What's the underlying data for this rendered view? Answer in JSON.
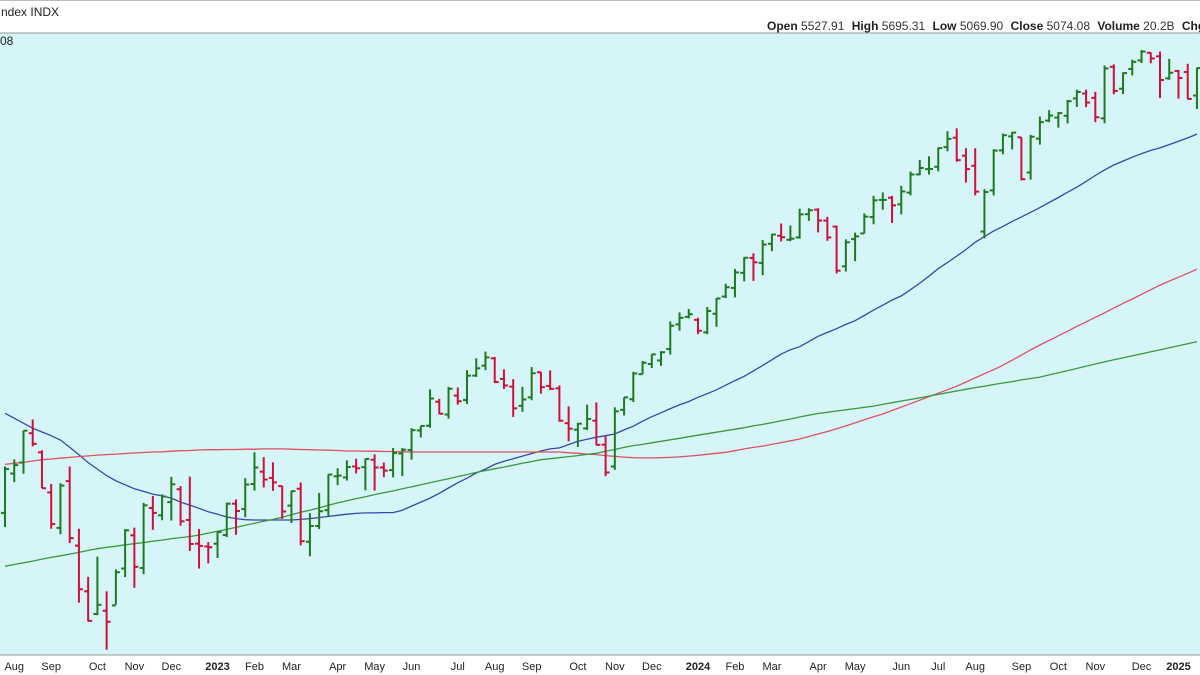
{
  "header": {
    "title": "ndex INDX",
    "price_label": "08",
    "stats": [
      {
        "label": "Open",
        "value": "5527.91"
      },
      {
        "label": "High",
        "value": "5695.31"
      },
      {
        "label": "Low",
        "value": "5069.90"
      },
      {
        "label": "Close",
        "value": "5074.08"
      },
      {
        "label": "Volume",
        "value": "20.2B"
      },
      {
        "label": "Chg"
      }
    ]
  },
  "chart_data": {
    "type": "ohlc",
    "log_scale": true,
    "ylim": [
      3474,
      6196
    ],
    "up_color": "#1f7a1f",
    "down_color": "#d0103a",
    "background": "#d6f5f8",
    "categories": [
      null,
      "Aug",
      null,
      null,
      null,
      "Sep",
      null,
      null,
      null,
      null,
      "Oct",
      null,
      null,
      null,
      "Nov",
      null,
      null,
      null,
      "Dec",
      null,
      null,
      null,
      null,
      "2023",
      null,
      null,
      null,
      "Feb",
      null,
      null,
      null,
      "Mar",
      null,
      null,
      null,
      null,
      "Apr",
      null,
      null,
      null,
      "May",
      null,
      null,
      null,
      "Jun",
      null,
      null,
      null,
      null,
      "Jul",
      null,
      null,
      null,
      "Aug",
      null,
      null,
      null,
      "Sep",
      null,
      null,
      null,
      null,
      "Oct",
      null,
      null,
      null,
      "Nov",
      null,
      null,
      null,
      "Dec",
      null,
      null,
      null,
      null,
      "2024",
      null,
      null,
      null,
      "Feb",
      null,
      null,
      null,
      "Mar",
      null,
      null,
      null,
      null,
      "Apr",
      null,
      null,
      null,
      "May",
      null,
      null,
      null,
      null,
      "Jun",
      null,
      null,
      null,
      "Jul",
      null,
      null,
      null,
      "Aug",
      null,
      null,
      null,
      null,
      "Sep",
      null,
      null,
      null,
      "Oct",
      null,
      null,
      null,
      "Nov",
      null,
      null,
      null,
      null,
      "Dec",
      null,
      null,
      null,
      "2025",
      null,
      null
    ],
    "open": [
      3965,
      4113,
      4155,
      4270,
      4195,
      4041,
      3910,
      4084,
      3846,
      3686,
      3609,
      3620,
      3638,
      3765,
      3883,
      3767,
      3983,
      3956,
      4005,
      4053,
      3939,
      3853,
      3843,
      3853,
      3884,
      3999,
      3979,
      4073,
      4120,
      4096,
      4065,
      3992,
      4055,
      3860,
      3917,
      3975,
      4102,
      4098,
      4140,
      4137,
      4166,
      4136,
      4126,
      4190,
      4204,
      4281,
      4300,
      4397,
      4345,
      4422,
      4404,
      4505,
      4547,
      4578,
      4491,
      4459,
      4380,
      4415,
      4519,
      4462,
      4452,
      4310,
      4284,
      4289,
      4320,
      4225,
      4140,
      4364,
      4407,
      4511,
      4554,
      4569,
      4618,
      4725,
      4758,
      4745,
      4690,
      4772,
      4849,
      4888,
      4957,
      5026,
      5003,
      5093,
      5131,
      5112,
      5123,
      5235,
      5257,
      5204,
      5175,
      4987,
      5115,
      5142,
      5221,
      5305,
      5316,
      5283,
      5341,
      5432,
      5459,
      5471,
      5572,
      5621,
      5528,
      5476,
      5151,
      5352,
      5555,
      5628,
      5623,
      5442,
      5616,
      5711,
      5727,
      5737,
      5830,
      5857,
      5833,
      5723,
      6004,
      5883,
      5992,
      6040,
      6083,
      6063,
      5940,
      5981,
      5975,
      5846
    ],
    "high": [
      4140,
      4167,
      4280,
      4325,
      4203,
      4073,
      4076,
      4140,
      3907,
      3736,
      3807,
      3686,
      3762,
      3906,
      3911,
      4002,
      4028,
      4034,
      4100,
      4065,
      4101,
      3906,
      3859,
      3895,
      4003,
      4015,
      4095,
      4195,
      4176,
      4156,
      4066,
      4048,
      4079,
      3964,
      4039,
      4110,
      4133,
      4164,
      4170,
      4171,
      4187,
      4155,
      4212,
      4212,
      4290,
      4299,
      4448,
      4409,
      4458,
      4456,
      4528,
      4578,
      4607,
      4584,
      4531,
      4490,
      4458,
      4541,
      4521,
      4527,
      4464,
      4378,
      4311,
      4385,
      4394,
      4257,
      4374,
      4415,
      4521,
      4567,
      4595,
      4609,
      4738,
      4778,
      4793,
      4754,
      4802,
      4842,
      4907,
      4975,
      5030,
      5048,
      5111,
      5140,
      5190,
      5180,
      5262,
      5264,
      5264,
      5222,
      5180,
      5114,
      5146,
      5239,
      5325,
      5342,
      5325,
      5375,
      5447,
      5506,
      5524,
      5570,
      5655,
      5670,
      5566,
      5566,
      5358,
      5561,
      5643,
      5651,
      5623,
      5636,
      5733,
      5767,
      5757,
      5822,
      5878,
      5878,
      5866,
      6012,
      6018,
      5973,
      6044,
      6099,
      6085,
      6090,
      6049,
      5987,
      6021,
      6000
    ],
    "low": [
      3913,
      4080,
      4112,
      4218,
      4057,
      3907,
      3887,
      3855,
      3647,
      3584,
      3605,
      3491,
      3641,
      3735,
      3698,
      3745,
      3903,
      3938,
      3937,
      3918,
      3827,
      3765,
      3783,
      3802,
      3877,
      3885,
      3949,
      4048,
      4060,
      4047,
      3943,
      3928,
      3847,
      3808,
      3906,
      3951,
      4069,
      4086,
      4113,
      4049,
      4048,
      4099,
      4098,
      4103,
      4166,
      4253,
      4292,
      4347,
      4328,
      4385,
      4388,
      4500,
      4528,
      4474,
      4449,
      4335,
      4356,
      4403,
      4430,
      4445,
      4316,
      4238,
      4216,
      4283,
      4223,
      4103,
      4127,
      4341,
      4396,
      4511,
      4537,
      4546,
      4594,
      4697,
      4751,
      4682,
      4682,
      4714,
      4842,
      4845,
      4918,
      4920,
      4946,
      5058,
      5104,
      5105,
      5117,
      5203,
      5147,
      5107,
      4954,
      4963,
      5011,
      5142,
      5186,
      5257,
      5192,
      5234,
      5327,
      5428,
      5432,
      5448,
      5550,
      5497,
      5391,
      5327,
      5119,
      5327,
      5535,
      5560,
      5402,
      5406,
      5585,
      5703,
      5674,
      5696,
      5784,
      5783,
      5703,
      5697,
      5853,
      5854,
      5956,
      6025,
      6024,
      5832,
      5932,
      5829,
      5826,
      5773
    ],
    "close": [
      4130,
      4145,
      4280,
      4228,
      4057,
      3924,
      4067,
      3873,
      3693,
      3586,
      3640,
      3583,
      3752,
      3901,
      3771,
      3993,
      3965,
      4026,
      4072,
      3934,
      3852,
      3845,
      3840,
      3895,
      3999,
      3972,
      4071,
      4136,
      4090,
      4079,
      3970,
      4046,
      3862,
      3917,
      3971,
      4109,
      4105,
      4138,
      4133,
      4169,
      4136,
      4124,
      4192,
      4205,
      4282,
      4299,
      4410,
      4348,
      4450,
      4399,
      4505,
      4536,
      4582,
      4478,
      4464,
      4370,
      4406,
      4515,
      4457,
      4450,
      4320,
      4288,
      4308,
      4327,
      4224,
      4117,
      4358,
      4415,
      4514,
      4559,
      4595,
      4604,
      4719,
      4754,
      4770,
      4697,
      4784,
      4840,
      4891,
      4959,
      5027,
      5006,
      5089,
      5137,
      5124,
      5117,
      5234,
      5254,
      5204,
      5123,
      4967,
      5100,
      5128,
      5223,
      5303,
      5305,
      5278,
      5347,
      5432,
      5465,
      5460,
      5567,
      5615,
      5505,
      5459,
      5346,
      5344,
      5554,
      5634,
      5648,
      5408,
      5626,
      5703,
      5738,
      5751,
      5815,
      5865,
      5808,
      5729,
      5995,
      5871,
      5969,
      6032,
      6090,
      6051,
      5931,
      5971,
      5942,
      5827,
      5997
    ],
    "moving_averages": [
      {
        "color": "#3547b0",
        "values": [
          4350,
          4330,
          4310,
          4290,
          4275,
          4260,
          4243,
          4215,
          4185,
          4155,
          4130,
          4105,
          4085,
          4070,
          4055,
          4045,
          4035,
          4028,
          4020,
          4005,
          3994,
          3982,
          3969,
          3960,
          3950,
          3944,
          3940,
          3939,
          3939,
          3939,
          3939,
          3939,
          3941,
          3944,
          3948,
          3952,
          3956,
          3960,
          3963,
          3965,
          3965,
          3966,
          3966,
          3975,
          3990,
          4005,
          4020,
          4038,
          4058,
          4078,
          4095,
          4115,
          4130,
          4148,
          4160,
          4170,
          4180,
          4190,
          4200,
          4208,
          4212,
          4225,
          4238,
          4246,
          4254,
          4260,
          4267,
          4283,
          4298,
          4318,
          4336,
          4352,
          4369,
          4384,
          4398,
          4415,
          4430,
          4446,
          4465,
          4484,
          4502,
          4525,
          4548,
          4572,
          4596,
          4615,
          4628,
          4650,
          4673,
          4690,
          4706,
          4725,
          4741,
          4764,
          4788,
          4810,
          4833,
          4852,
          4880,
          4910,
          4942,
          4976,
          5005,
          5035,
          5066,
          5100,
          5127,
          5154,
          5176,
          5200,
          5222,
          5244,
          5267,
          5292,
          5317,
          5343,
          5368,
          5397,
          5427,
          5455,
          5480,
          5500,
          5520,
          5538,
          5555,
          5568,
          5585,
          5602,
          5620,
          5640
        ]
      },
      {
        "color": "#e0505f",
        "values": [
          4148,
          4152,
          4156,
          4161,
          4166,
          4169,
          4172,
          4175,
          4178,
          4181,
          4184,
          4186,
          4188,
          4190,
          4192,
          4194,
          4196,
          4197,
          4199,
          4201,
          4202,
          4204,
          4205,
          4205,
          4206,
          4206,
          4207,
          4207,
          4208,
          4208,
          4208,
          4207,
          4206,
          4205,
          4204,
          4203,
          4202,
          4200,
          4200,
          4199,
          4199,
          4198,
          4198,
          4197,
          4196,
          4196,
          4196,
          4196,
          4196,
          4196,
          4196,
          4196,
          4196,
          4196,
          4196,
          4196,
          4196,
          4196,
          4196,
          4196,
          4196,
          4193,
          4191,
          4188,
          4186,
          4182,
          4179,
          4176,
          4174,
          4173,
          4173,
          4174,
          4175,
          4177,
          4180,
          4183,
          4187,
          4191,
          4195,
          4201,
          4208,
          4214,
          4219,
          4226,
          4233,
          4240,
          4247,
          4257,
          4267,
          4277,
          4288,
          4299,
          4311,
          4324,
          4336,
          4347,
          4361,
          4375,
          4389,
          4403,
          4418,
          4432,
          4446,
          4461,
          4478,
          4496,
          4513,
          4530,
          4549,
          4570,
          4592,
          4614,
          4635,
          4655,
          4675,
          4695,
          4716,
          4736,
          4756,
          4776,
          4797,
          4818,
          4838,
          4859,
          4880,
          4901,
          4919,
          4937,
          4955,
          4974
        ]
      },
      {
        "color": "#3a9a3a",
        "values": [
          3773,
          3779,
          3785,
          3791,
          3798,
          3804,
          3810,
          3816,
          3822,
          3829,
          3835,
          3840,
          3844,
          3849,
          3853,
          3857,
          3862,
          3866,
          3871,
          3875,
          3879,
          3884,
          3891,
          3898,
          3905,
          3912,
          3920,
          3927,
          3934,
          3941,
          3949,
          3958,
          3967,
          3975,
          3984,
          3993,
          4002,
          4010,
          4018,
          4025,
          4033,
          4040,
          4047,
          4055,
          4062,
          4070,
          4078,
          4086,
          4093,
          4101,
          4109,
          4117,
          4124,
          4131,
          4138,
          4145,
          4152,
          4159,
          4166,
          4170,
          4174,
          4178,
          4182,
          4187,
          4191,
          4199,
          4206,
          4214,
          4221,
          4226,
          4232,
          4238,
          4244,
          4250,
          4256,
          4262,
          4268,
          4274,
          4280,
          4286,
          4292,
          4299,
          4305,
          4312,
          4320,
          4327,
          4335,
          4342,
          4349,
          4354,
          4359,
          4364,
          4369,
          4374,
          4379,
          4386,
          4393,
          4400,
          4406,
          4413,
          4420,
          4427,
          4434,
          4441,
          4448,
          4455,
          4461,
          4468,
          4474,
          4480,
          4487,
          4493,
          4499,
          4508,
          4517,
          4526,
          4535,
          4545,
          4554,
          4563,
          4572,
          4580,
          4589,
          4597,
          4606,
          4614,
          4623,
          4632,
          4641,
          4650
        ]
      }
    ]
  }
}
